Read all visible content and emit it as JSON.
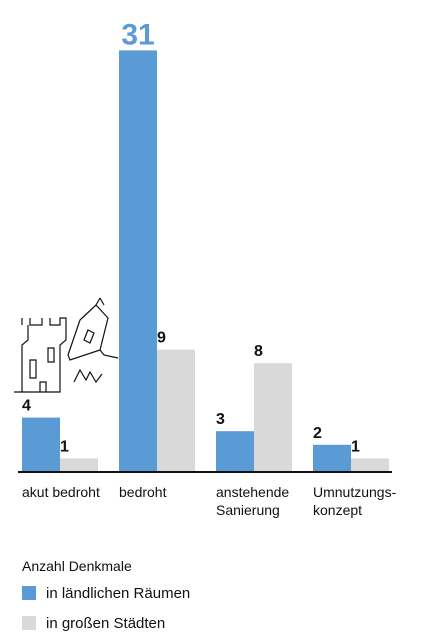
{
  "chart_data": {
    "type": "bar",
    "categories": [
      "akut bedroht",
      "bedroht",
      "anstehende Sanierung",
      "Umnutzungs-konzept"
    ],
    "series": [
      {
        "name": "in ländlichen Räumen",
        "color": "#5b9bd5",
        "values": [
          4,
          31,
          3,
          2
        ]
      },
      {
        "name": "in großen Städten",
        "color": "#d9d9d9",
        "values": [
          1,
          9,
          8,
          1
        ]
      }
    ],
    "legend_title": "Anzahl Denkmale"
  }
}
